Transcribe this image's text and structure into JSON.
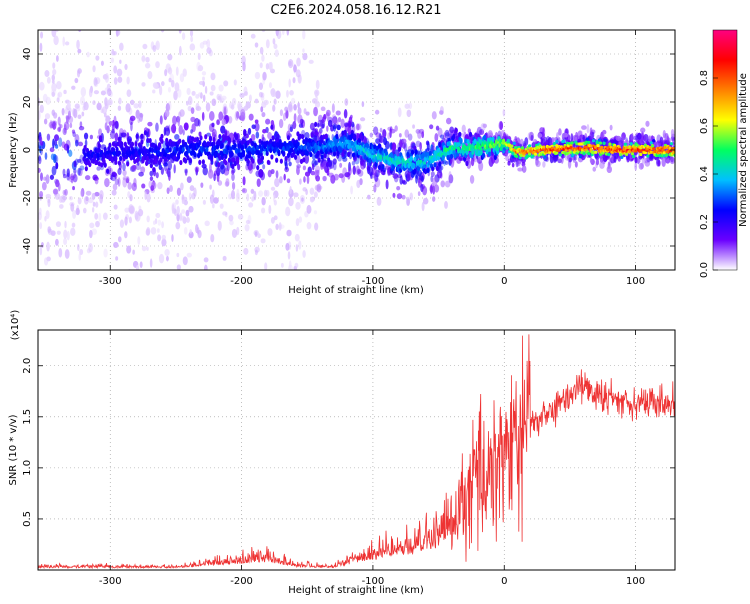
{
  "title": "C2E6.2024.058.16.12.R21",
  "chart_data": [
    {
      "type": "heatmap",
      "name": "spectrogram",
      "xlabel": "Height of straight line (km)",
      "ylabel": "Frequency (Hz)",
      "xlim": [
        -355,
        130
      ],
      "ylim": [
        -50,
        50
      ],
      "x_ticks": [
        -300,
        -200,
        -100,
        0,
        100
      ],
      "y_ticks": [
        -40,
        -20,
        0,
        20,
        40
      ],
      "grid": true,
      "colorbar": {
        "label": "Normalized spectral amplitude",
        "range": [
          0,
          1
        ],
        "ticks": [
          0.0,
          0.2,
          0.4,
          0.6,
          0.8
        ],
        "colors": [
          "#ffffff",
          "#6a00ff",
          "#0000ff",
          "#00c0ff",
          "#00ff60",
          "#ffff00",
          "#ff8000",
          "#ff0000",
          "#ff0080"
        ]
      },
      "ridge": [
        {
          "x": -320,
          "f": -2,
          "amp": 0.25
        },
        {
          "x": -280,
          "f": -1,
          "amp": 0.25
        },
        {
          "x": -240,
          "f": 0,
          "amp": 0.3
        },
        {
          "x": -200,
          "f": 0,
          "amp": 0.3
        },
        {
          "x": -160,
          "f": 1,
          "amp": 0.3
        },
        {
          "x": -140,
          "f": 1,
          "amp": 0.35
        },
        {
          "x": -120,
          "f": 3,
          "amp": 0.4
        },
        {
          "x": -100,
          "f": -2,
          "amp": 0.45
        },
        {
          "x": -80,
          "f": -5,
          "amp": 0.45
        },
        {
          "x": -60,
          "f": -5,
          "amp": 0.45
        },
        {
          "x": -40,
          "f": 1,
          "amp": 0.5
        },
        {
          "x": -20,
          "f": 1,
          "amp": 0.55
        },
        {
          "x": 0,
          "f": 3,
          "amp": 0.6
        },
        {
          "x": 10,
          "f": -1,
          "amp": 0.8
        },
        {
          "x": 30,
          "f": 0,
          "amp": 0.85
        },
        {
          "x": 60,
          "f": 1,
          "amp": 0.9
        },
        {
          "x": 90,
          "f": 0,
          "amp": 0.9
        },
        {
          "x": 130,
          "f": 0,
          "amp": 0.9
        }
      ]
    },
    {
      "type": "line",
      "name": "snr",
      "xlabel": "Height of straight line (km)",
      "ylabel": "SNR (10 * v/v)",
      "y_multiplier": "(x10⁴)",
      "xlim": [
        -355,
        130
      ],
      "ylim": [
        0,
        2.35
      ],
      "x_ticks": [
        -300,
        -200,
        -100,
        0,
        100
      ],
      "y_ticks": [
        0.5,
        1.0,
        1.5,
        2.0
      ],
      "grid": true,
      "color": "#ee3333",
      "envelope": [
        {
          "x": -355,
          "y": 0.02
        },
        {
          "x": -250,
          "y": 0.02
        },
        {
          "x": -200,
          "y": 0.06
        },
        {
          "x": -180,
          "y": 0.08
        },
        {
          "x": -160,
          "y": 0.03
        },
        {
          "x": -130,
          "y": 0.02
        },
        {
          "x": -110,
          "y": 0.08
        },
        {
          "x": -90,
          "y": 0.12
        },
        {
          "x": -70,
          "y": 0.15
        },
        {
          "x": -60,
          "y": 0.2
        },
        {
          "x": -50,
          "y": 0.22
        },
        {
          "x": -40,
          "y": 0.35
        },
        {
          "x": -30,
          "y": 0.7
        },
        {
          "x": -20,
          "y": 0.9
        },
        {
          "x": -10,
          "y": 1.05
        },
        {
          "x": 0,
          "y": 1.15
        },
        {
          "x": 10,
          "y": 1.3
        },
        {
          "x": 20,
          "y": 1.45
        },
        {
          "x": 30,
          "y": 1.5
        },
        {
          "x": 50,
          "y": 1.7
        },
        {
          "x": 57,
          "y": 1.85
        },
        {
          "x": 70,
          "y": 1.7
        },
        {
          "x": 100,
          "y": 1.65
        },
        {
          "x": 130,
          "y": 1.62
        }
      ]
    }
  ]
}
